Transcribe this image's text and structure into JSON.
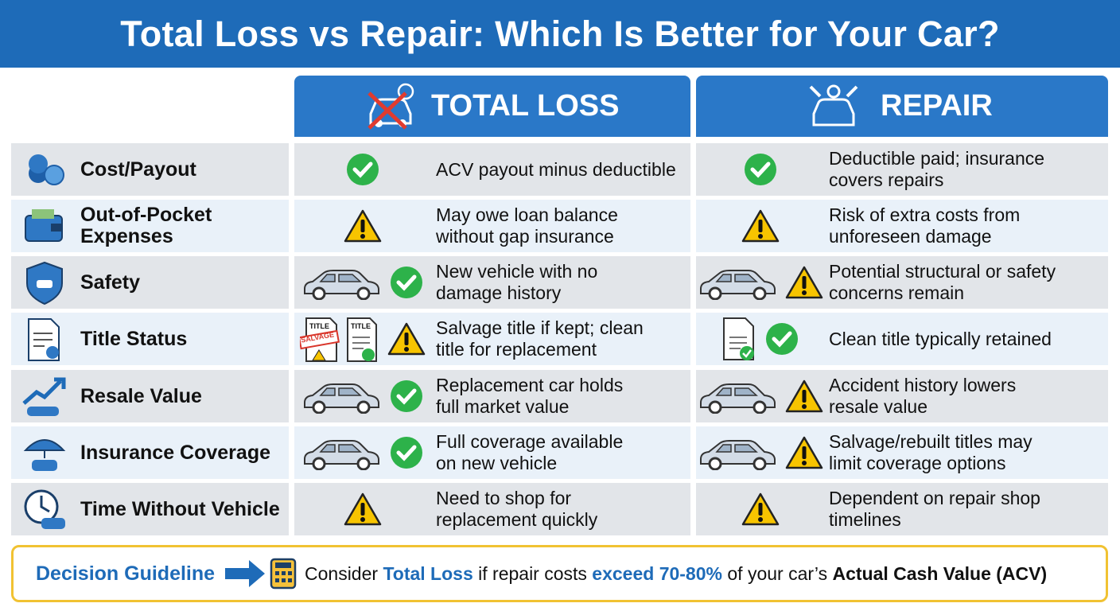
{
  "header": {
    "title": "Total Loss vs Repair: Which Is Better for Your Car?"
  },
  "table": {
    "columns": [
      "TOTAL LOSS",
      "REPAIR"
    ],
    "rows": [
      {
        "label": [
          "Cost/Payout"
        ],
        "total_loss": [
          "ACV payout minus deductible"
        ],
        "repair": [
          "Deductible paid; insurance",
          "covers repairs"
        ]
      },
      {
        "label": [
          "Out-of-Pocket",
          "Expenses"
        ],
        "total_loss": [
          "May owe loan balance",
          "without gap insurance"
        ],
        "repair": [
          "Risk of extra costs from",
          "unforeseen damage"
        ]
      },
      {
        "label": [
          "Safety"
        ],
        "total_loss": [
          "New vehicle with no",
          "damage history"
        ],
        "repair": [
          "Potential structural or safety",
          "concerns remain"
        ]
      },
      {
        "label": [
          "Title Status"
        ],
        "total_loss": [
          "Salvage title if kept; clean",
          "title for replacement"
        ],
        "repair": [
          "Clean title typically retained"
        ],
        "icon_labels": [
          "TITLE",
          "SALVAGE",
          "TITLE"
        ]
      },
      {
        "label": [
          "Resale Value"
        ],
        "total_loss": [
          "Replacement car holds",
          "full market value"
        ],
        "repair": [
          "Accident history lowers",
          "resale value"
        ]
      },
      {
        "label": [
          "Insurance Coverage"
        ],
        "total_loss": [
          "Full coverage available",
          "on new vehicle"
        ],
        "repair": [
          "Salvage/rebuilt titles may",
          "limit coverage options"
        ]
      },
      {
        "label": [
          "Time Without Vehicle"
        ],
        "total_loss": [
          "Need to shop for",
          "replacement quickly"
        ],
        "repair": [
          "Dependent on repair shop",
          "timelines"
        ]
      }
    ]
  },
  "footer": {
    "label": "Decision Guideline",
    "text": [
      "Consider ",
      "Total Loss",
      " if repair costs ",
      "exceed 70-80%",
      " of your car’s ",
      "Actual Cash Value (ACV)"
    ]
  }
}
